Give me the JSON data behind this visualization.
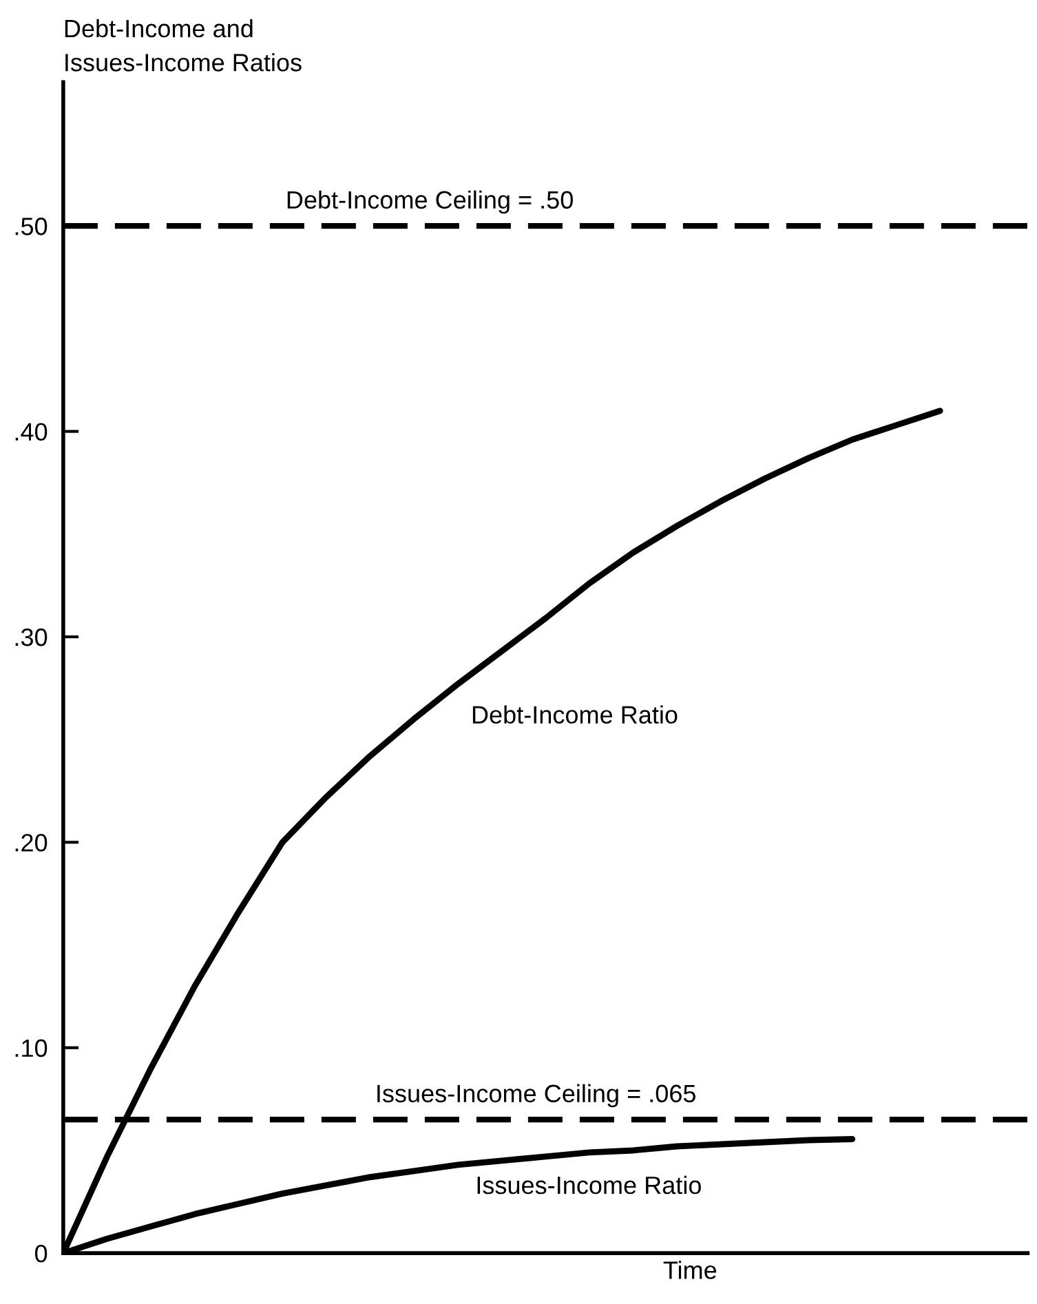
{
  "chart_data": {
    "type": "line",
    "ylabel": "Debt-Income and\nIssues-Income Ratios",
    "xlabel": "Time",
    "categories": [
      null,
      null,
      null,
      null,
      null,
      null,
      null,
      null,
      null,
      null,
      null,
      null,
      null,
      null,
      null,
      null,
      null,
      null,
      null,
      null,
      null,
      null,
      null
    ],
    "series": [
      {
        "name": "Debt-Income Ratio",
        "color": "#000000",
        "values": [
          0,
          0.047,
          0.09,
          0.13,
          0.166,
          0.2,
          0.222,
          0.242,
          0.26,
          0.277,
          0.293,
          0.309,
          0.326,
          0.341,
          0.354,
          0.366,
          0.377,
          0.387,
          0.396,
          0.403,
          0.41,
          null,
          null
        ]
      },
      {
        "name": "Issues-Income Ratio",
        "color": "#000000",
        "values": [
          0,
          0.007,
          0.013,
          0.019,
          0.024,
          0.029,
          0.033,
          0.037,
          0.04,
          0.043,
          0.045,
          0.047,
          0.049,
          0.05,
          0.052,
          0.053,
          0.054,
          0.055,
          0.0555,
          null,
          null,
          null,
          null
        ]
      }
    ],
    "ref_lines": [
      {
        "axis": "y",
        "value": 0.5,
        "label": "Debt-Income Ceiling = .50",
        "color": "#000000",
        "line_style": "dashed"
      },
      {
        "axis": "y",
        "value": 0.065,
        "label": "Issues-Income Ceiling = .065",
        "color": "#000000",
        "line_style": "dashed"
      }
    ],
    "ylim": [
      0,
      0.57
    ],
    "yticks": [
      {
        "value": 0,
        "label": "0"
      },
      {
        "value": 0.1,
        "label": ".10"
      },
      {
        "value": 0.2,
        "label": ".20"
      },
      {
        "value": 0.3,
        "label": ".30"
      },
      {
        "value": 0.4,
        "label": ".40"
      },
      {
        "value": 0.5,
        "label": ".50"
      }
    ],
    "tick_labels": "y",
    "grid": false,
    "legend": false,
    "marker": "none",
    "line_style": "solid"
  }
}
